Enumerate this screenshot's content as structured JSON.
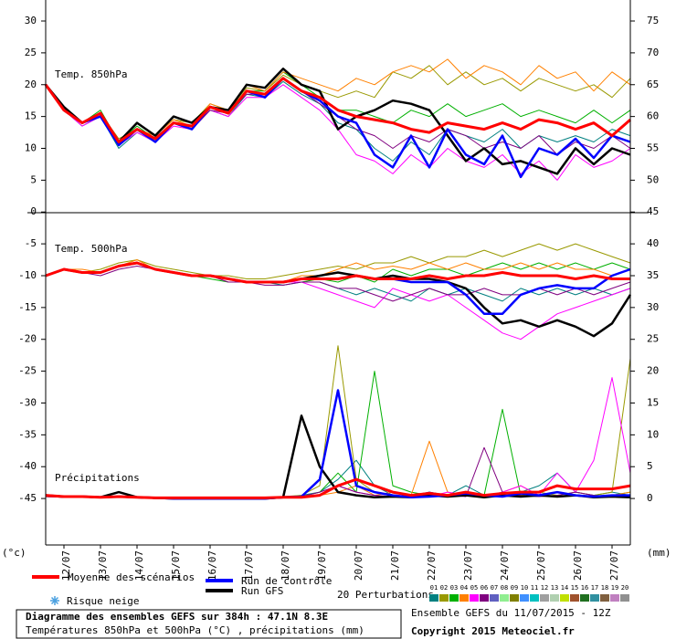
{
  "chart_data": {
    "type": "line",
    "x": [
      0,
      12,
      24,
      36,
      48,
      60,
      72,
      84,
      96,
      108,
      120,
      132,
      144,
      156,
      168,
      180,
      192,
      204,
      216,
      228,
      240,
      252,
      264,
      276,
      288,
      300,
      312,
      324,
      336,
      348,
      360,
      372,
      384
    ],
    "xlim": [
      0,
      384
    ],
    "xticks": [
      {
        "value": 12,
        "label": "12/07"
      },
      {
        "value": 36,
        "label": "13/07"
      },
      {
        "value": 60,
        "label": "14/07"
      },
      {
        "value": 84,
        "label": "15/07"
      },
      {
        "value": 108,
        "label": "16/07"
      },
      {
        "value": 132,
        "label": "17/07"
      },
      {
        "value": 156,
        "label": "18/07"
      },
      {
        "value": 180,
        "label": "19/07"
      },
      {
        "value": 204,
        "label": "20/07"
      },
      {
        "value": 228,
        "label": "21/07"
      },
      {
        "value": 252,
        "label": "22/07"
      },
      {
        "value": 276,
        "label": "23/07"
      },
      {
        "value": 300,
        "label": "24/07"
      },
      {
        "value": 324,
        "label": "25/07"
      },
      {
        "value": 348,
        "label": "26/07"
      },
      {
        "value": 372,
        "label": "27/07"
      }
    ],
    "ylim": [
      -52.3,
      33.3
    ],
    "yticks": [
      30,
      25,
      20,
      15,
      10,
      5,
      0,
      -5,
      -10,
      -15,
      -20,
      -25,
      -30,
      -35,
      -40,
      -45
    ],
    "y2lim": [
      -7.3,
      78.3
    ],
    "y2ticks": [
      75,
      70,
      65,
      60,
      55,
      50,
      45,
      40,
      35,
      30,
      25,
      20,
      15,
      10,
      5,
      0
    ],
    "y_unit": "(°c)",
    "y2_unit": "(mm)",
    "legend": [
      {
        "name": "Moyenne des scénarios",
        "color": "#ff0000"
      },
      {
        "name": "Run de contrôle",
        "color": "#0000ff"
      },
      {
        "name": "Run GFS",
        "color": "#000000"
      }
    ],
    "snow_label": "Risque neige",
    "perturbations_title": "20 Perturbations",
    "perturbation_labels": [
      "01",
      "02",
      "03",
      "04",
      "05",
      "06",
      "07",
      "08",
      "09",
      "10",
      "11",
      "12",
      "13",
      "14",
      "15",
      "16",
      "17",
      "18",
      "19",
      "20"
    ],
    "perturbation_colors": [
      "#008080",
      "#999900",
      "#00b000",
      "#ff8000",
      "#ff00ff",
      "#800080",
      "#6060c0",
      "#90ee90",
      "#808000",
      "#4090ff",
      "#00c0c0",
      "#a0a0a0",
      "#b0d0b0",
      "#c0e000",
      "#a0522d",
      "#207020",
      "#3090a0",
      "#806040",
      "#c080c0",
      "#909090"
    ],
    "panels": [
      {
        "label": "Temp. 850hPa",
        "series": [
          {
            "values": [
              20,
              16,
              14,
              15.5,
              11,
              13,
              11.5,
              14,
              13.5,
              16.5,
              15.5,
              19,
              18.5,
              21,
              19,
              18,
              16,
              15,
              14.5,
              14,
              13,
              12.5,
              14,
              13.5,
              13,
              14,
              13,
              14.5,
              14,
              13,
              14,
              12,
              14.5
            ]
          },
          {
            "values": [
              20,
              16,
              14,
              15,
              10.5,
              13,
              11,
              14,
              13,
              16.5,
              15.5,
              19,
              18,
              21,
              19,
              17.5,
              15,
              14,
              9,
              7,
              12,
              7,
              13,
              9,
              7.5,
              12,
              5.5,
              10,
              9,
              11.5,
              8.5,
              12,
              11
            ]
          },
          {
            "values": [
              20,
              16.5,
              14,
              15.5,
              11,
              14,
              12,
              15,
              14,
              16.5,
              16,
              20,
              19.5,
              22.5,
              20,
              19,
              13,
              15,
              16,
              17.5,
              17,
              16,
              12,
              8,
              10,
              7.5,
              8,
              7,
              6,
              10,
              7.5,
              10,
              9
            ]
          }
        ],
        "perturbations": [
          [
            20,
            16,
            13.5,
            15,
            10,
            12.5,
            11,
            14,
            13,
            16,
            15,
            18.5,
            18,
            20.5,
            18.5,
            17,
            14,
            13,
            10,
            8,
            11,
            9,
            13,
            12,
            11,
            13,
            10,
            12,
            11,
            12,
            11,
            13,
            12
          ],
          [
            20,
            16,
            14,
            15.5,
            11.5,
            13,
            12,
            14.5,
            14,
            17,
            16,
            19.5,
            19,
            21.5,
            20,
            19,
            18,
            19,
            18,
            22,
            21,
            23,
            20,
            22,
            20,
            21,
            19,
            21,
            20,
            19,
            20,
            18,
            21
          ],
          [
            20,
            16,
            14,
            16,
            11,
            13.5,
            11.5,
            14,
            13.5,
            16.5,
            16,
            19,
            19,
            22,
            20,
            18,
            16,
            16,
            15,
            14,
            16,
            15,
            17,
            15,
            16,
            17,
            15,
            16,
            15,
            14,
            16,
            14,
            16
          ],
          [
            20,
            16.5,
            14,
            15.5,
            11,
            13,
            12,
            14.5,
            13.5,
            17,
            16,
            20,
            19,
            22,
            21,
            20,
            19,
            21,
            20,
            22,
            23,
            22,
            24,
            21,
            23,
            22,
            20,
            23,
            21,
            22,
            19,
            22,
            20
          ],
          [
            20,
            16,
            13.5,
            15,
            10.5,
            12.5,
            11,
            13.5,
            13,
            16,
            15,
            18,
            18,
            20,
            18,
            16,
            13,
            9,
            8,
            6,
            9,
            7,
            10,
            8,
            7,
            9,
            6,
            8,
            5,
            9,
            7,
            8,
            10
          ],
          [
            20,
            16,
            14,
            15,
            11,
            13,
            11.5,
            14,
            13,
            16,
            15.5,
            18.5,
            18.5,
            21,
            19,
            17,
            15,
            13,
            12,
            10,
            12,
            11,
            13,
            12,
            10,
            11,
            10,
            12,
            9,
            11,
            10,
            12,
            10
          ]
        ]
      },
      {
        "label": "Temp. 500hPa",
        "series": [
          {
            "values": [
              -10,
              -9,
              -9.5,
              -9.5,
              -8.5,
              -8,
              -9,
              -9.5,
              -10,
              -10,
              -10.5,
              -11,
              -11,
              -11,
              -10.5,
              -10.5,
              -10.5,
              -10,
              -10.5,
              -10.5,
              -10.5,
              -10,
              -10.5,
              -10,
              -10,
              -9.5,
              -10,
              -10,
              -10,
              -10.5,
              -10,
              -10.5,
              -10.5
            ]
          },
          {
            "values": [
              -10,
              -9,
              -9.5,
              -9.5,
              -8.5,
              -8,
              -9,
              -9.5,
              -10,
              -10,
              -10.5,
              -11,
              -11,
              -11,
              -10.5,
              -10.5,
              -10.5,
              -10,
              -10.5,
              -10.5,
              -11,
              -11,
              -11,
              -13,
              -16,
              -16,
              -13,
              -12,
              -11.5,
              -12,
              -12,
              -10,
              -9
            ]
          },
          {
            "values": [
              -10,
              -9,
              -9.5,
              -9.5,
              -8.5,
              -8,
              -9,
              -9.5,
              -10,
              -10,
              -10.5,
              -11,
              -11,
              -11,
              -10.5,
              -10,
              -9.5,
              -10,
              -10.5,
              -10,
              -10.5,
              -10.5,
              -11,
              -12,
              -15,
              -17.5,
              -17,
              -18,
              -17,
              -18,
              -19.5,
              -17.5,
              -13
            ]
          }
        ],
        "perturbations": [
          [
            -10,
            -9,
            -9.5,
            -9.5,
            -8.5,
            -8,
            -9,
            -9.5,
            -10,
            -10,
            -10.5,
            -11,
            -11,
            -11.5,
            -11,
            -11,
            -12,
            -13,
            -12,
            -13,
            -14,
            -12,
            -13,
            -12,
            -13,
            -14,
            -12,
            -13,
            -12,
            -13,
            -12,
            -13,
            -12
          ],
          [
            -10,
            -9,
            -9.5,
            -9,
            -8,
            -7.5,
            -8.5,
            -9,
            -9.5,
            -10,
            -10,
            -10.5,
            -10.5,
            -10,
            -9.5,
            -9,
            -8.5,
            -9,
            -8,
            -8,
            -7,
            -8,
            -7,
            -7,
            -6,
            -7,
            -6,
            -5,
            -6,
            -5,
            -6,
            -7,
            -8
          ],
          [
            -10,
            -9,
            -9.5,
            -9.5,
            -8.5,
            -8,
            -9,
            -9.5,
            -10,
            -10.5,
            -11,
            -11,
            -11,
            -11,
            -11,
            -10.5,
            -11,
            -10,
            -11,
            -9,
            -10,
            -9,
            -9,
            -10,
            -9,
            -8,
            -9,
            -8,
            -9,
            -8,
            -9,
            -8,
            -9
          ],
          [
            -10,
            -9,
            -9,
            -9.5,
            -8.5,
            -7.5,
            -9,
            -9.5,
            -10,
            -10,
            -10.5,
            -11,
            -11,
            -11,
            -10,
            -10,
            -9,
            -8,
            -9,
            -8.5,
            -9,
            -8,
            -9,
            -8,
            -9,
            -9,
            -8,
            -9,
            -8,
            -9,
            -9,
            -10,
            -9
          ],
          [
            -10,
            -9,
            -9.5,
            -9.5,
            -8.5,
            -8,
            -9,
            -9.5,
            -10,
            -10,
            -10.5,
            -11,
            -11,
            -11,
            -11,
            -12,
            -13,
            -14,
            -15,
            -12,
            -13,
            -14,
            -13,
            -15,
            -17,
            -19,
            -20,
            -18,
            -16,
            -15,
            -14,
            -13,
            -12
          ],
          [
            -10,
            -9,
            -9.5,
            -10,
            -9,
            -8.5,
            -9,
            -9.5,
            -10,
            -10,
            -11,
            -11,
            -11.5,
            -11.5,
            -11,
            -11,
            -12,
            -12,
            -13,
            -14,
            -13,
            -12,
            -13,
            -13,
            -12,
            -13,
            -13,
            -12,
            -13,
            -12,
            -13,
            -12,
            -11
          ]
        ]
      },
      {
        "label": "Précipitations",
        "axis": "y2",
        "series": [
          {
            "values": [
              0.5,
              0.3,
              0.3,
              0.2,
              0.3,
              0.2,
              0.1,
              0.1,
              0.1,
              0.1,
              0.1,
              0.1,
              0.1,
              0.2,
              0.2,
              0.5,
              2,
              3,
              2,
              1,
              0.5,
              0.8,
              0.5,
              1,
              0.5,
              0.8,
              1,
              1,
              2,
              1.5,
              1.5,
              1.5,
              2
            ]
          },
          {
            "values": [
              0.5,
              0.3,
              0.3,
              0.2,
              0.3,
              0.2,
              0.1,
              0,
              0,
              0,
              0,
              0,
              0,
              0.2,
              0.3,
              3,
              17,
              2,
              1,
              0.5,
              0.2,
              0.3,
              0.5,
              0.8,
              0.5,
              0.3,
              0.8,
              0.5,
              1,
              0.5,
              0.3,
              0.5,
              0.5
            ]
          },
          {
            "values": [
              0.5,
              0.3,
              0.3,
              0.2,
              1,
              0.2,
              0.1,
              0,
              0,
              0,
              0,
              0,
              0,
              0.2,
              13,
              5,
              1,
              0.5,
              0.2,
              0.3,
              0.2,
              0.5,
              0.3,
              0.5,
              0.2,
              0.5,
              0.3,
              0.5,
              0.3,
              0.5,
              0.2,
              0.3,
              0.2
            ]
          }
        ],
        "perturbations": [
          [
            0.3,
            0.2,
            0.2,
            0.1,
            0.2,
            0.1,
            0,
            0,
            0,
            0,
            0,
            0,
            0,
            0.2,
            0.5,
            1,
            3,
            6,
            2,
            0.5,
            0.2,
            1,
            0.5,
            2,
            0.5,
            0.3,
            1,
            2,
            4,
            1,
            0.5,
            1,
            0.5
          ],
          [
            0.3,
            0.2,
            0.2,
            0.1,
            0.2,
            0.1,
            0,
            0,
            0,
            0,
            0,
            0,
            0,
            0.3,
            0.5,
            2,
            24,
            3,
            1,
            0.5,
            0.3,
            0.5,
            0.3,
            0.8,
            0.5,
            0.3,
            0.5,
            1,
            0.5,
            1,
            0.5,
            1,
            22
          ],
          [
            0.3,
            0.2,
            0.2,
            0.1,
            0.2,
            0.1,
            0,
            0,
            0,
            0,
            0,
            0,
            0,
            0.1,
            0.3,
            1,
            4,
            1,
            20,
            2,
            1,
            0.5,
            0.5,
            1,
            0.5,
            14,
            0.5,
            0.3,
            1,
            0.5,
            0.3,
            0.5,
            1
          ],
          [
            0.3,
            0.2,
            0.2,
            0.1,
            0.2,
            0.1,
            0,
            0,
            0,
            0,
            0,
            0,
            0,
            0.1,
            0.3,
            0.5,
            1,
            2,
            0.5,
            1,
            0.5,
            9,
            1,
            0.5,
            0.3,
            1,
            2,
            0.5,
            1,
            0.5,
            0.3,
            0.5,
            1
          ],
          [
            0.3,
            0.2,
            0.2,
            0.1,
            0.2,
            0.1,
            0,
            0,
            0,
            0,
            0,
            0,
            0,
            0.1,
            0.3,
            0.5,
            2,
            1,
            0.5,
            0.3,
            0.5,
            0.3,
            1,
            0.5,
            0.3,
            1,
            2,
            0.5,
            4,
            1,
            6,
            19,
            4
          ],
          [
            0.3,
            0.2,
            0.2,
            0.1,
            0.2,
            0.1,
            0,
            0,
            0,
            0,
            0,
            0,
            0,
            0.1,
            0.3,
            1,
            2,
            1,
            0.5,
            0.3,
            0.5,
            1,
            0.5,
            0.3,
            8,
            1,
            0.5,
            0.3,
            0.5,
            1,
            0.5,
            0.3,
            0.5
          ]
        ]
      }
    ],
    "title": "Diagramme des ensembles GEFS sur 384h : 47.1N 8.3E",
    "subtitle": "Températures 850hPa et 500hPa (°C) , précipitations (mm)",
    "run_info": "Ensemble GEFS du 11/07/2015 - 12Z",
    "copyright": "Copyright 2015 Meteociel.fr"
  }
}
